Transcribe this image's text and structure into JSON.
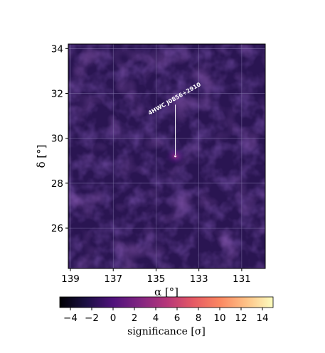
{
  "chart_data": {
    "type": "heatmap",
    "title": "",
    "xlabel": "α [°]",
    "ylabel": "δ [°]",
    "x_axis_reversed": true,
    "xlim": [
      139.1,
      129.9
    ],
    "ylim": [
      24.2,
      34.2
    ],
    "x_ticks": [
      139,
      137,
      135,
      133,
      131
    ],
    "x_tick_labels": [
      "139",
      "137",
      "135",
      "133",
      "131"
    ],
    "y_ticks": [
      26,
      28,
      30,
      32,
      34
    ],
    "y_tick_labels": [
      "26",
      "28",
      "30",
      "32",
      "34"
    ],
    "grid": true,
    "colormap": "magma",
    "background_level_sigma": 1,
    "hotspot": {
      "ra": 134.1,
      "dec": 29.2,
      "peak_sigma": 5
    },
    "annotation": {
      "text": "4HWC J0856+2910",
      "source_ra": 134.1,
      "source_dec": 29.2,
      "label_ra": 134.1,
      "label_dec": 31.5
    },
    "colorbar": {
      "label": "significance [σ]",
      "range": [
        -5,
        15
      ],
      "ticks": [
        -4,
        -2,
        0,
        2,
        4,
        6,
        8,
        10,
        12,
        14
      ],
      "tick_labels": [
        "−4",
        "−2",
        "0",
        "2",
        "4",
        "6",
        "8",
        "10",
        "12",
        "14"
      ]
    }
  },
  "colors": {
    "magma": [
      "#000004",
      "#1c1044",
      "#4f127b",
      "#812581",
      "#b5367a",
      "#e55964",
      "#fb8761",
      "#fec287",
      "#fcfdbf"
    ],
    "grid": "#8a7fb0",
    "annotation": "#ffffff"
  }
}
